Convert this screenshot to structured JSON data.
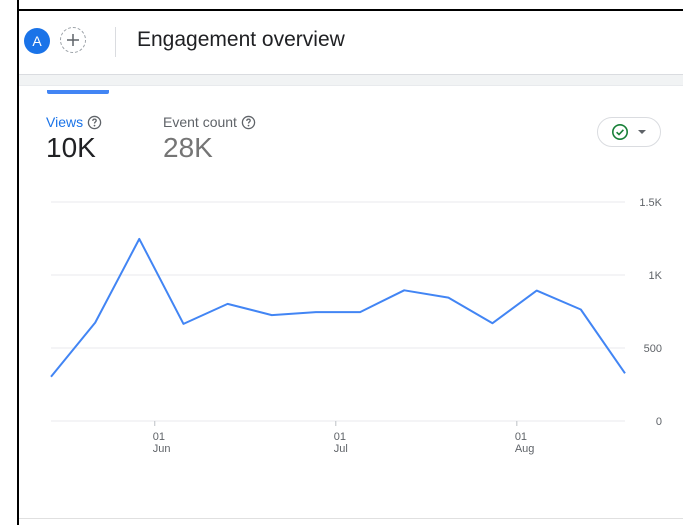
{
  "header": {
    "avatar_letter": "A",
    "title": "Engagement overview"
  },
  "metrics": [
    {
      "label": "Views",
      "value": "10K",
      "selected": true
    },
    {
      "label": "Event count",
      "value": "28K",
      "selected": false
    }
  ],
  "colors": {
    "accent": "#1a73e8",
    "line": "#4285f4",
    "check": "#188038"
  },
  "icons": {
    "help": "help-circle-icon",
    "check": "check-circle-icon",
    "dropdown": "caret-down-icon"
  },
  "chart_data": {
    "type": "line",
    "series": [
      {
        "name": "Views",
        "values": [
          303,
          674,
          1247,
          665,
          802,
          725,
          746,
          746,
          895,
          845,
          670,
          893,
          764,
          327
        ]
      }
    ],
    "y_ticks": [
      "1.5K",
      "1K",
      "500",
      "0"
    ],
    "ylim": [
      0,
      1500
    ],
    "x_ticks": [
      {
        "day": "01",
        "month": "Jun"
      },
      {
        "day": "01",
        "month": "Jul"
      },
      {
        "day": "01",
        "month": "Aug"
      }
    ],
    "grid": true
  }
}
